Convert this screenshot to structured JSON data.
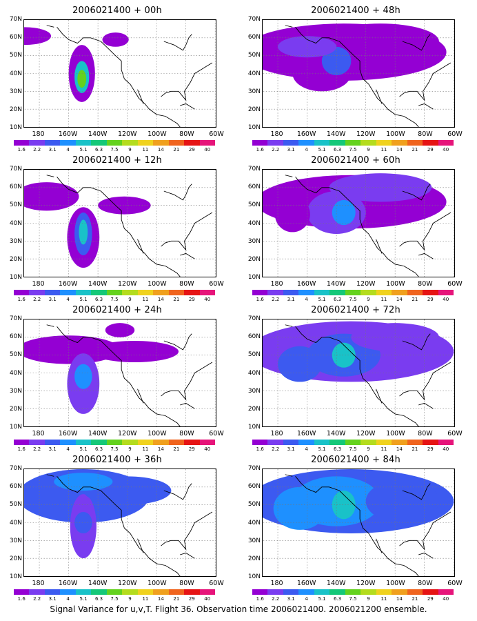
{
  "caption": "Signal Variance for u,v,T. Flight 36. Observation time 2006021400. 2006021200 ensemble.",
  "colorbar": {
    "colors": [
      "#9400d3",
      "#7a3cf0",
      "#3c5af0",
      "#1e90ff",
      "#19c2c8",
      "#14c878",
      "#64d21e",
      "#b4dc1e",
      "#f0d21e",
      "#f0a01e",
      "#f0641e",
      "#e61414",
      "#e6147a"
    ],
    "labels": [
      "1.6",
      "2.2",
      "3.1",
      "4",
      "5.1",
      "6.3",
      "7.5",
      "9",
      "11",
      "14",
      "21",
      "29",
      "40"
    ]
  },
  "axes": {
    "lat_labels": [
      "70N",
      "60N",
      "50N",
      "40N",
      "30N",
      "20N",
      "10N"
    ],
    "lon_labels": [
      "180",
      "160W",
      "140W",
      "120W",
      "100W",
      "80W",
      "60W"
    ]
  },
  "panels": [
    {
      "title": "2006021400 + 00h"
    },
    {
      "title": "2006021400 + 48h"
    },
    {
      "title": "2006021400 + 12h"
    },
    {
      "title": "2006021400 + 60h"
    },
    {
      "title": "2006021400 + 24h"
    },
    {
      "title": "2006021400 + 72h"
    },
    {
      "title": "2006021400 + 36h"
    },
    {
      "title": "2006021400 + 84h"
    }
  ]
}
